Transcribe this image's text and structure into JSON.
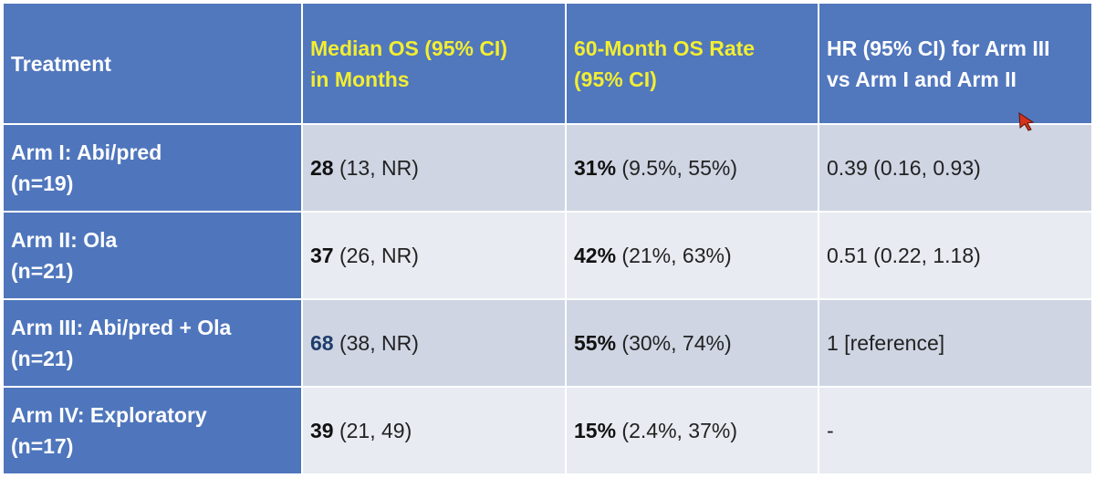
{
  "header": {
    "treatment": "Treatment",
    "median_os_line1": "Median OS (95% CI)",
    "median_os_line2": "in Months",
    "os_rate_line1": "60-Month OS Rate",
    "os_rate_line2": "(95% CI)",
    "hr_line1": "HR (95% CI) for Arm III",
    "hr_line2": "vs Arm I and Arm II"
  },
  "rows": [
    {
      "arm_line1": "Arm I: Abi/pred",
      "arm_line2": "(n=19)",
      "median_value": "28",
      "median_ci": " (13, NR)",
      "rate_value": "31%",
      "rate_ci": " (9.5%, 55%)",
      "hr": "0.39 (0.16, 0.93)"
    },
    {
      "arm_line1": "Arm II: Ola",
      "arm_line2": "(n=21)",
      "median_value": "37",
      "median_ci": " (26, NR)",
      "rate_value": "42%",
      "rate_ci": " (21%, 63%)",
      "hr": "0.51 (0.22, 1.18)"
    },
    {
      "arm_line1": "Arm III: Abi/pred + Ola",
      "arm_line2": "(n=21)",
      "median_value": "68",
      "median_ci": " (38, NR)",
      "rate_value": "55%",
      "rate_ci": " (30%, 74%)",
      "hr": "1 [reference]"
    },
    {
      "arm_line1": "Arm IV: Exploratory",
      "arm_line2": "(n=17)",
      "median_value": "39",
      "median_ci": " (21, 49)",
      "rate_value": "15%",
      "rate_ci": " (2.4%, 37%)",
      "hr": "-"
    }
  ],
  "colors": {
    "header_bg": "#5177bd",
    "header_yellow_text": "#f2ee32",
    "arm_cell_bg": "#4f76bc",
    "row_alt_bg": "#cfd5e3",
    "row_base_bg": "#e8ebf1",
    "cursor": "#d6331c"
  },
  "icons": {
    "cursor": "mouse-pointer-icon"
  }
}
